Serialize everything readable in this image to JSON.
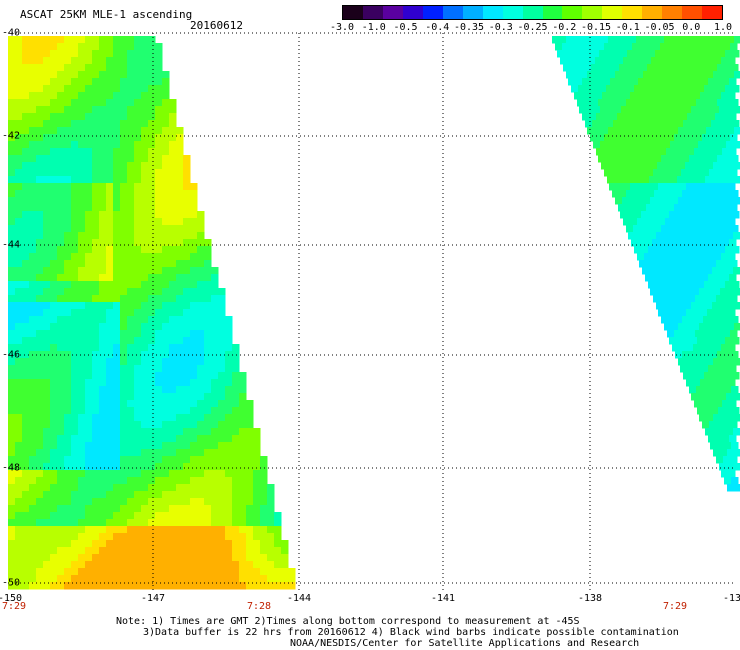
{
  "header": {
    "title": "ASCAT 25KM MLE-1 ascending",
    "date": "20160612"
  },
  "colorbar": {
    "labels": [
      "-3.0",
      "-1.0",
      "-0.5",
      "-0.4",
      "-0.35",
      "-0.3",
      "-0.25",
      "-0.2",
      "-0.15",
      "-0.1",
      "-0.05",
      "0.0",
      "1.0"
    ],
    "colors": [
      "#1a001a",
      "#3a0060",
      "#5a00a0",
      "#3000d0",
      "#0020ff",
      "#0070ff",
      "#00b0ff",
      "#00e8ff",
      "#00ffe0",
      "#00ffa0",
      "#20ff40",
      "#60ff00",
      "#a0ff00",
      "#e0ff00",
      "#ffe000",
      "#ffb000",
      "#ff8000",
      "#ff5000",
      "#ff2000"
    ]
  },
  "map": {
    "lat_labels": [
      "-40",
      "-42",
      "-44",
      "-46",
      "-48",
      "-50"
    ],
    "lon_labels": [
      "-150",
      "-147",
      "-144",
      "-141",
      "-138",
      "-13"
    ],
    "time_labels": [
      "7:29",
      "7:28",
      "7:29"
    ]
  },
  "notes": {
    "line1": "Note: 1) Times are GMT 2)Times along bottom correspond to measurement at -45S",
    "line2": "3)Data buffer is 22 hrs from 20160612 4) Black wind barbs indicate possible contamination",
    "line3": "NOAA/NESDIS/Center for Satellite Applications and Research"
  }
}
